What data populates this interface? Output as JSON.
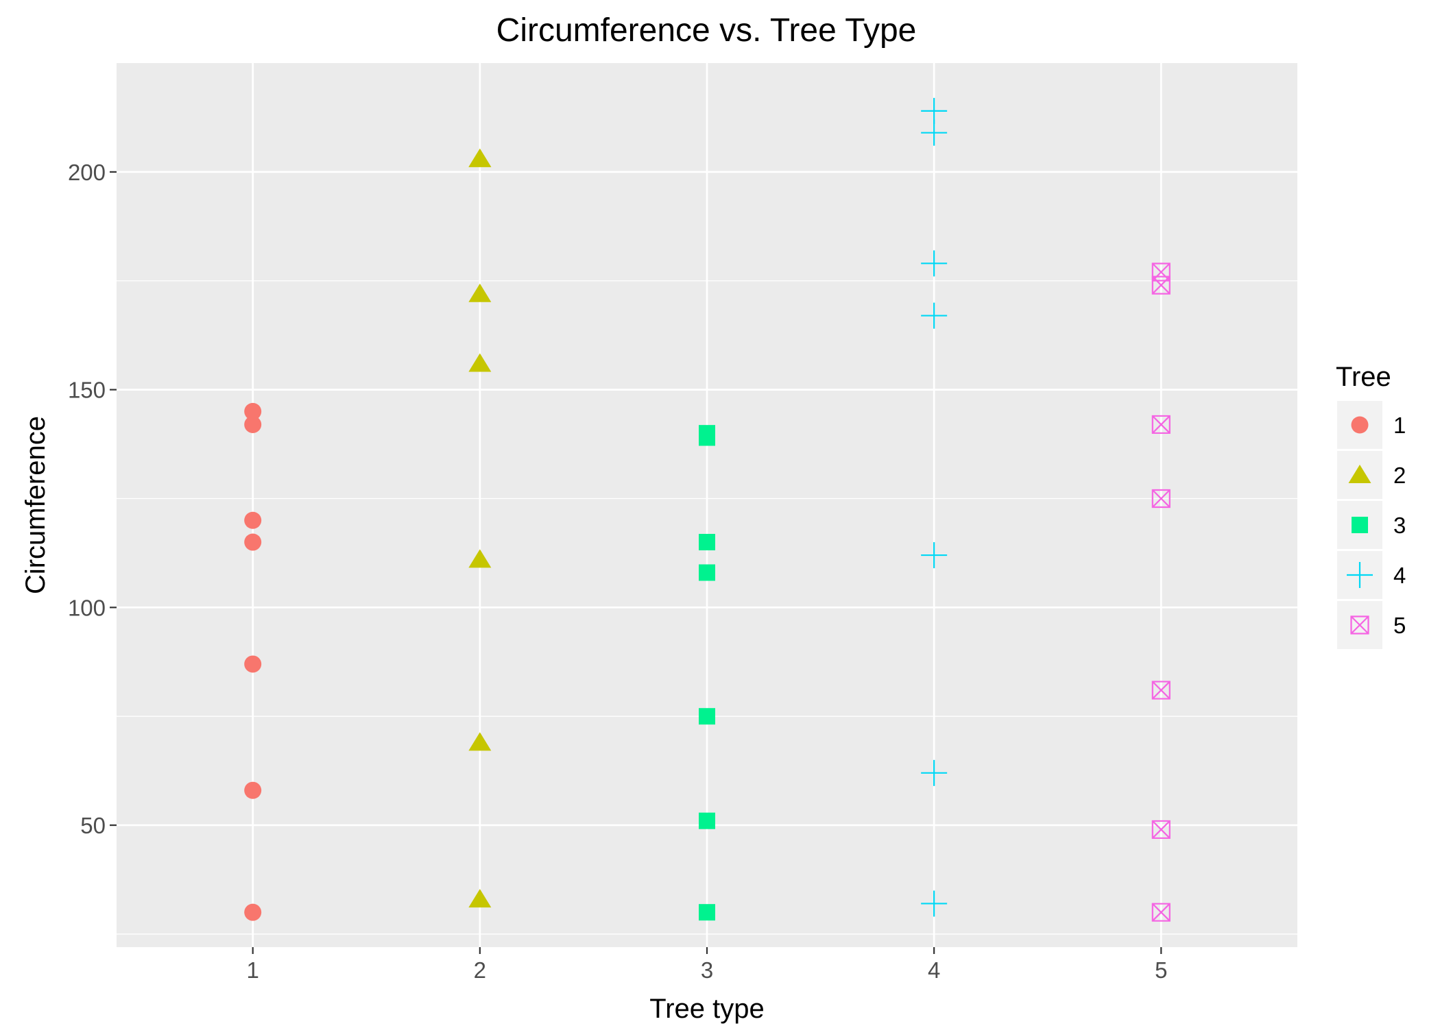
{
  "chart_data": {
    "type": "scatter",
    "title": "Circumference vs. Tree Type",
    "xlabel": "Tree type",
    "ylabel": "Circumference",
    "xlim": [
      0.4,
      5.6
    ],
    "ylim": [
      22,
      225
    ],
    "x_ticks": [
      "1",
      "2",
      "3",
      "4",
      "5"
    ],
    "y_ticks": [
      "50",
      "100",
      "150",
      "200"
    ],
    "grid": true,
    "legend": {
      "title": "Tree",
      "position": "right"
    },
    "series": [
      {
        "name": "1",
        "shape": "circle",
        "color": "#F8766D",
        "x": 1,
        "values": [
          30,
          58,
          87,
          115,
          120,
          142,
          145
        ]
      },
      {
        "name": "2",
        "shape": "triangle",
        "color": "#C6C600",
        "x": 2,
        "values": [
          33,
          69,
          111,
          156,
          172,
          203,
          203
        ]
      },
      {
        "name": "3",
        "shape": "square",
        "color": "#00F28F",
        "x": 3,
        "values": [
          30,
          51,
          75,
          108,
          115,
          139,
          140
        ]
      },
      {
        "name": "4",
        "shape": "plus",
        "color": "#00D8F5",
        "x": 4,
        "values": [
          32,
          62,
          112,
          167,
          179,
          209,
          214
        ]
      },
      {
        "name": "5",
        "shape": "boxx",
        "color": "#F564E3",
        "x": 5,
        "values": [
          30,
          49,
          81,
          125,
          142,
          174,
          177
        ]
      }
    ]
  }
}
